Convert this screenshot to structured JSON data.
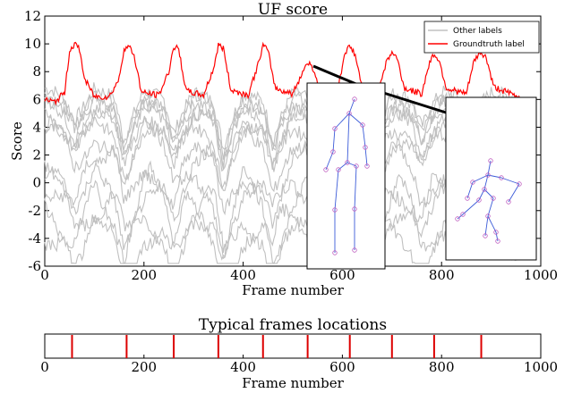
{
  "colors": {
    "groundtruth": "#ff0000",
    "other": "#c0c0c0",
    "skeleton_bone": "#3b5bd8",
    "skeleton_joint": "#c060c0",
    "marker": "#dd0000",
    "frame": "#000000"
  },
  "chart_data": [
    {
      "type": "line",
      "title": "UF score",
      "xlabel": "Frame number",
      "ylabel": "Score",
      "xlim": [
        0,
        1000
      ],
      "ylim": [
        -6,
        12
      ],
      "xticks": [
        0,
        200,
        400,
        600,
        800,
        1000
      ],
      "yticks": [
        -6,
        -4,
        -2,
        0,
        2,
        4,
        6,
        8,
        10,
        12
      ],
      "grid": false,
      "legend_position": "top-right",
      "peak_centers": [
        60,
        168,
        263,
        352,
        440,
        530,
        615,
        700,
        785,
        878
      ],
      "series": [
        {
          "name": "Other labels",
          "color": "#c0c0c0",
          "x": [
            0,
            20,
            40,
            60,
            80,
            100,
            120,
            140,
            160,
            180,
            200,
            220,
            240,
            260,
            280,
            300,
            320,
            340,
            360,
            380,
            400,
            420,
            440,
            460,
            480,
            500,
            520,
            540,
            560,
            580,
            600,
            620,
            640,
            660,
            680,
            700,
            720,
            740,
            760,
            780,
            800,
            820,
            840,
            860,
            880,
            900,
            920,
            940,
            960
          ],
          "y": [
            6.8,
            6.6,
            6.0,
            4.5,
            5.5,
            6.8,
            6.5,
            6.2,
            3.0,
            5.0,
            6.6,
            6.4,
            6.0,
            3.5,
            5.2,
            6.5,
            6.3,
            5.8,
            2.5,
            4.8,
            6.4,
            6.2,
            5.9,
            3.0,
            5.0,
            6.5,
            6.3,
            6.0,
            3.5,
            5.5,
            6.6,
            6.4,
            5.8,
            3.8,
            5.2,
            6.4,
            6.3,
            6.0,
            4.0,
            5.5,
            6.6,
            6.4,
            6.0,
            4.2,
            5.8,
            6.5,
            6.4,
            6.2,
            6.0
          ]
        },
        {
          "name": "Groundtruth label",
          "color": "#ff0000",
          "x": [
            0,
            20,
            40,
            50,
            60,
            70,
            80,
            100,
            130,
            150,
            160,
            170,
            180,
            195,
            230,
            250,
            260,
            270,
            285,
            320,
            340,
            350,
            360,
            375,
            410,
            430,
            440,
            450,
            465,
            500,
            520,
            530,
            540,
            555,
            590,
            605,
            615,
            625,
            640,
            670,
            690,
            700,
            710,
            725,
            760,
            775,
            785,
            795,
            810,
            850,
            865,
            878,
            890,
            905,
            940,
            960
          ],
          "y": [
            6.0,
            5.8,
            6.5,
            9.5,
            10.0,
            9.6,
            7.5,
            6.2,
            6.2,
            7.5,
            9.7,
            9.8,
            9.2,
            6.5,
            6.3,
            8.0,
            9.8,
            9.6,
            6.6,
            6.3,
            8.2,
            9.9,
            9.7,
            6.7,
            6.3,
            8.5,
            9.9,
            9.5,
            6.8,
            6.4,
            8.0,
            8.7,
            8.3,
            6.8,
            6.5,
            9.4,
            9.8,
            9.3,
            6.9,
            6.5,
            8.8,
            9.4,
            9.0,
            6.8,
            6.4,
            8.6,
            9.3,
            8.8,
            6.8,
            6.4,
            8.7,
            9.4,
            9.0,
            6.9,
            6.4,
            6.1
          ]
        }
      ]
    },
    {
      "type": "bar",
      "title": "Typical frames locations",
      "xlabel": "Frame number",
      "xlim": [
        0,
        1000
      ],
      "xticks": [
        0,
        200,
        400,
        600,
        800,
        1000
      ],
      "x": [
        55,
        165,
        260,
        350,
        440,
        530,
        615,
        700,
        785,
        880
      ]
    }
  ]
}
